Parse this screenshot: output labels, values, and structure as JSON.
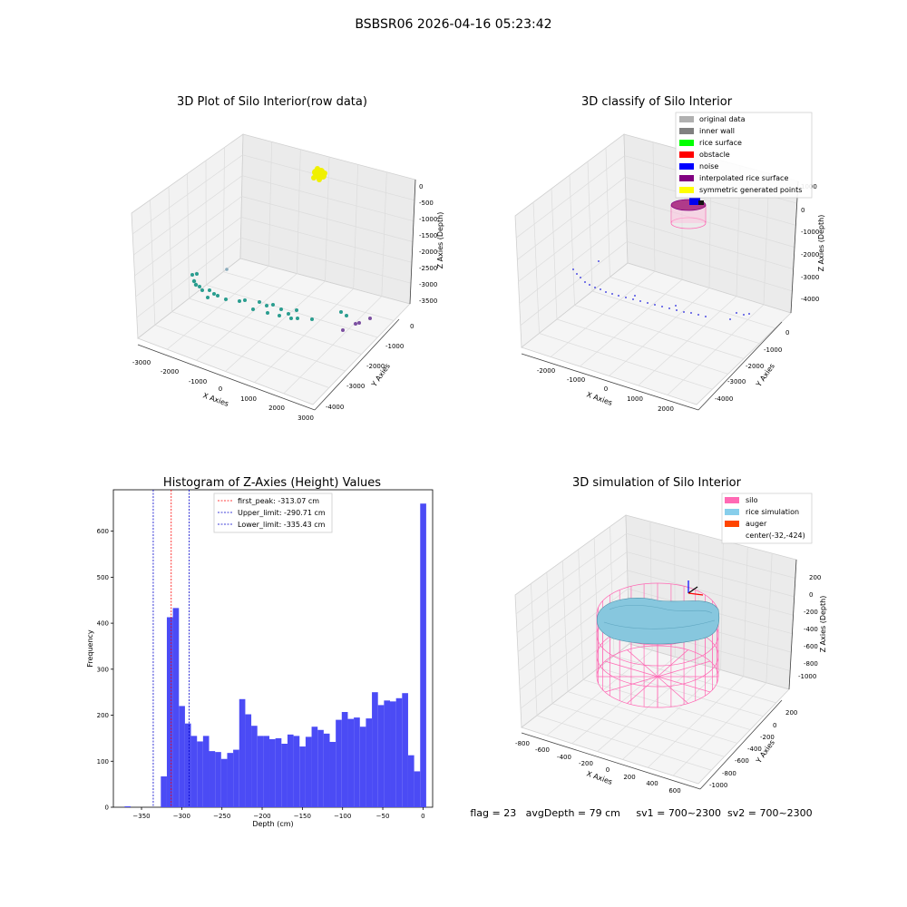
{
  "suptitle": "BSBSR06 2026-04-16 05:23:42",
  "panel1": {
    "title": "3D Plot of Silo Interior(row data)",
    "xlabel": "X Axies",
    "ylabel": "Y Axies",
    "zlabel": "Z Axies (Depth)",
    "x_ticks": [
      "-3000",
      "-2000",
      "-1000",
      "0",
      "1000",
      "2000",
      "3000"
    ],
    "y_ticks": [
      "0",
      "-1000",
      "-2000",
      "-3000",
      "-4000"
    ],
    "z_ticks": [
      "0",
      "-500",
      "-1000",
      "-1500",
      "-2000",
      "-2500",
      "-3000",
      "-3500"
    ]
  },
  "panel2": {
    "title": "3D classify of Silo Interior",
    "xlabel": "X Axies",
    "ylabel": "Y Axies",
    "zlabel": "Z Axies (Depth)",
    "x_ticks": [
      "-2000",
      "-1000",
      "0",
      "1000",
      "2000"
    ],
    "y_ticks": [
      "0",
      "-1000",
      "-2000",
      "-3000",
      "-4000"
    ],
    "z_ticks": [
      "1000",
      "0",
      "-1000",
      "-2000",
      "-3000",
      "-4000"
    ],
    "legend": [
      {
        "label": "original data",
        "color": "#b0b0b0"
      },
      {
        "label": "inner wall",
        "color": "#808080"
      },
      {
        "label": "rice surface",
        "color": "#00ff00"
      },
      {
        "label": "obstacle",
        "color": "#ff0000"
      },
      {
        "label": "noise",
        "color": "#0000ff"
      },
      {
        "label": "interpolated rice surface",
        "color": "#800080"
      },
      {
        "label": "symmetric generated points",
        "color": "#ffff00"
      }
    ]
  },
  "panel4": {
    "title": "3D simulation of Silo Interior",
    "xlabel": "X Axies",
    "ylabel": "Y Axies",
    "zlabel": "Z Axies (Depth)",
    "x_ticks": [
      "-800",
      "-600",
      "-400",
      "-200",
      "0",
      "200",
      "400",
      "600"
    ],
    "y_ticks": [
      "200",
      "0",
      "-200",
      "-400",
      "-600",
      "-800",
      "-1000"
    ],
    "z_ticks": [
      "200",
      "0",
      "-200",
      "-400",
      "-600",
      "-800",
      "-1000"
    ],
    "legend": [
      {
        "label": "silo",
        "color": "#ff69b4"
      },
      {
        "label": "rice simulation",
        "color": "#87ceeb"
      },
      {
        "label": "auger",
        "color": "#ff4500"
      },
      {
        "label": "center(-32,-424)",
        "color": ""
      }
    ]
  },
  "status_line": "flag = 23   avgDepth = 79 cm     sv1 = 700~2300  sv2 = 700~2300",
  "chart_data": {
    "type": "bar",
    "title": "Histogram of Z-Axies (Height) Values",
    "xlabel": "Depth (cm)",
    "ylabel": "Frequency",
    "xlim": [
      -385,
      12
    ],
    "ylim": [
      0,
      690
    ],
    "x_ticks": [
      -350,
      -300,
      -250,
      -200,
      -150,
      -100,
      -50,
      0
    ],
    "y_ticks": [
      0,
      100,
      200,
      300,
      400,
      500,
      600
    ],
    "bar_color": "#4b4bf5",
    "bin_width": 7.5,
    "bin_starts": [
      -371,
      -363.5,
      -356,
      -348.5,
      -341,
      -333.5,
      -326,
      -318.5,
      -311,
      -303.5,
      -296,
      -288.5,
      -281,
      -273.5,
      -266,
      -258.5,
      -251,
      -243.5,
      -236,
      -228.5,
      -221,
      -213.5,
      -206,
      -198.5,
      -191,
      -183.5,
      -176,
      -168.5,
      -161,
      -153.5,
      -146,
      -138.5,
      -131,
      -123.5,
      -116,
      -108.5,
      -101,
      -93.5,
      -86,
      -78.5,
      -71,
      -63.5,
      -56,
      -48.5,
      -41,
      -33.5,
      -26,
      -18.5,
      -11,
      -3.5
    ],
    "values": [
      2,
      0,
      0,
      0,
      0,
      0,
      67,
      413,
      433,
      220,
      182,
      155,
      143,
      155,
      122,
      120,
      105,
      118,
      125,
      235,
      202,
      177,
      155,
      155,
      148,
      150,
      138,
      158,
      155,
      132,
      153,
      175,
      168,
      160,
      142,
      190,
      207,
      192,
      195,
      175,
      193,
      250,
      222,
      232,
      230,
      237,
      248,
      113,
      78,
      660
    ],
    "lines": [
      {
        "label": "first_peak: -313.07 cm",
        "x": -313.07,
        "color": "#ff0000"
      },
      {
        "label": "Upper_limit: -290.71 cm",
        "x": -290.71,
        "color": "#0000cc"
      },
      {
        "label": "Lower_limit: -335.43 cm",
        "x": -335.43,
        "color": "#0000cc"
      }
    ]
  }
}
